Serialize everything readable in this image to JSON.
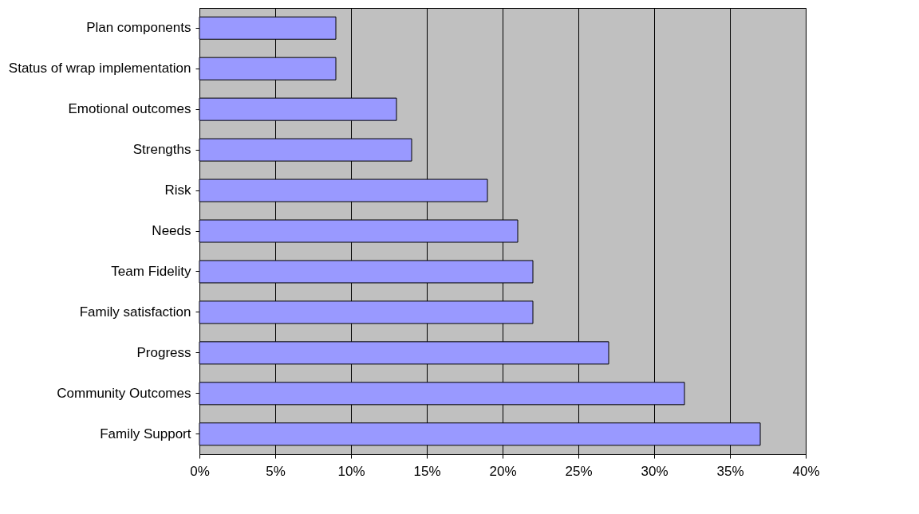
{
  "chart_data": {
    "type": "bar",
    "orientation": "horizontal",
    "categories": [
      "Plan components",
      "Status of wrap implementation",
      "Emotional outcomes",
      "Strengths",
      "Risk",
      "Needs",
      "Team Fidelity",
      "Family satisfaction",
      "Progress",
      "Community Outcomes",
      "Family Support"
    ],
    "values": [
      9,
      9,
      13,
      14,
      19,
      21,
      22,
      22,
      27,
      32,
      37
    ],
    "color": "#9999ff",
    "xlim": [
      0,
      40
    ],
    "xticks": [
      {
        "value": 0,
        "label": "0%"
      },
      {
        "value": 5,
        "label": "5%"
      },
      {
        "value": 10,
        "label": "10%"
      },
      {
        "value": 15,
        "label": "15%"
      },
      {
        "value": 20,
        "label": "20%"
      },
      {
        "value": 25,
        "label": "25%"
      },
      {
        "value": 30,
        "label": "30%"
      },
      {
        "value": 35,
        "label": "35%"
      },
      {
        "value": 40,
        "label": "40%"
      }
    ],
    "grid": "x"
  }
}
